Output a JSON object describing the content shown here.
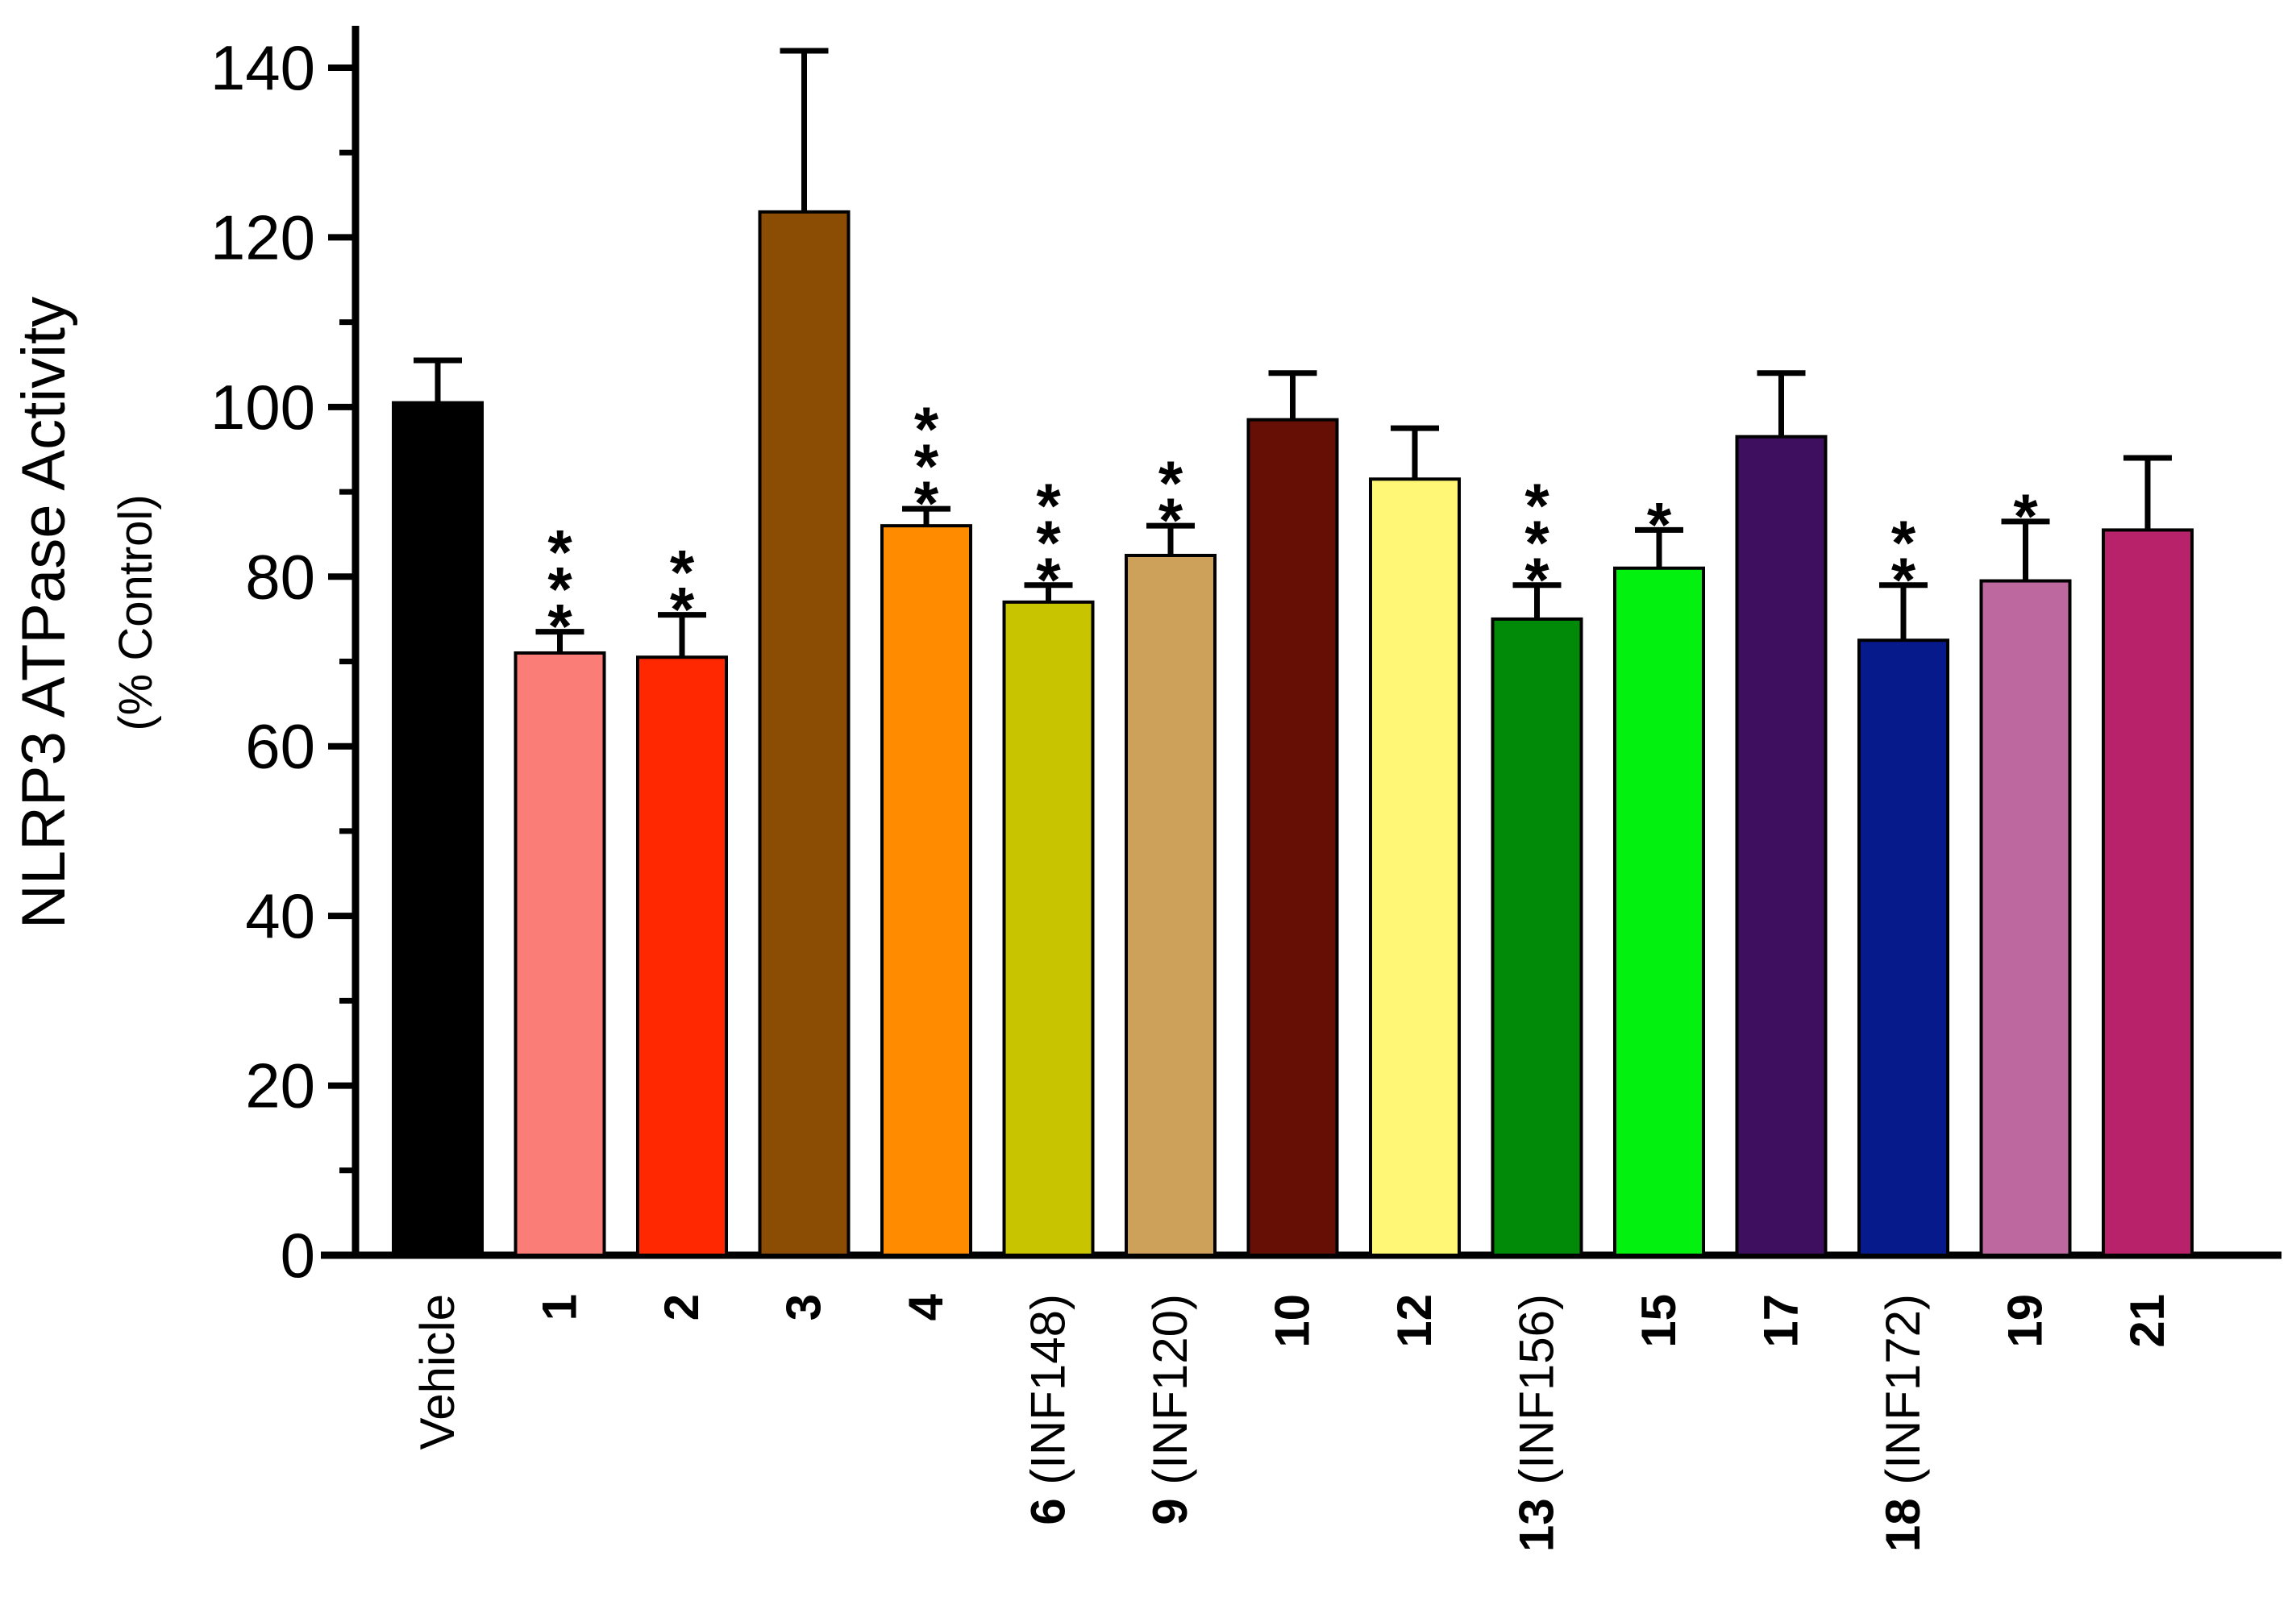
{
  "chart_data": {
    "type": "bar",
    "title": "",
    "xlabel": "",
    "ylabel": "NLRP3 ATPase Activity",
    "ylabel_sub": "(% Control)",
    "ylim": [
      0,
      140
    ],
    "yticks": [
      0,
      20,
      40,
      60,
      80,
      100,
      120,
      140
    ],
    "grid": false,
    "categories": [
      {
        "bold": "",
        "rest": "Vehicle"
      },
      {
        "bold": "1",
        "rest": ""
      },
      {
        "bold": "2",
        "rest": ""
      },
      {
        "bold": "3",
        "rest": ""
      },
      {
        "bold": "4",
        "rest": ""
      },
      {
        "bold": "6",
        "rest": " (INF148)"
      },
      {
        "bold": "9",
        "rest": " (INF120)"
      },
      {
        "bold": "10",
        "rest": ""
      },
      {
        "bold": "12",
        "rest": ""
      },
      {
        "bold": "13",
        "rest": " (INF156)"
      },
      {
        "bold": "15",
        "rest": ""
      },
      {
        "bold": "17",
        "rest": ""
      },
      {
        "bold": "18",
        "rest": " (INF172)"
      },
      {
        "bold": "19",
        "rest": ""
      },
      {
        "bold": "21",
        "rest": ""
      }
    ],
    "values": [
      100.5,
      71,
      70.5,
      123,
      86,
      77,
      82.5,
      98.5,
      91.5,
      75,
      81,
      96.5,
      72.5,
      79.5,
      85.5
    ],
    "errors": [
      5,
      2.5,
      5,
      19,
      2,
      2,
      3.5,
      5.5,
      6,
      4,
      4.5,
      7.5,
      6.5,
      7,
      8.5
    ],
    "significance": [
      "",
      "***",
      "**",
      "",
      "***",
      "***",
      "**",
      "",
      "",
      "***",
      "*",
      "",
      "**",
      "*",
      ""
    ],
    "colors": [
      "#000000",
      "#FA7D77",
      "#FF2800",
      "#8B4C04",
      "#FF8C00",
      "#C8C400",
      "#CDA15A",
      "#650F05",
      "#FFF775",
      "#008A07",
      "#03F10E",
      "#3F0F5F",
      "#061A8C",
      "#BE68A0",
      "#B7226A"
    ]
  }
}
